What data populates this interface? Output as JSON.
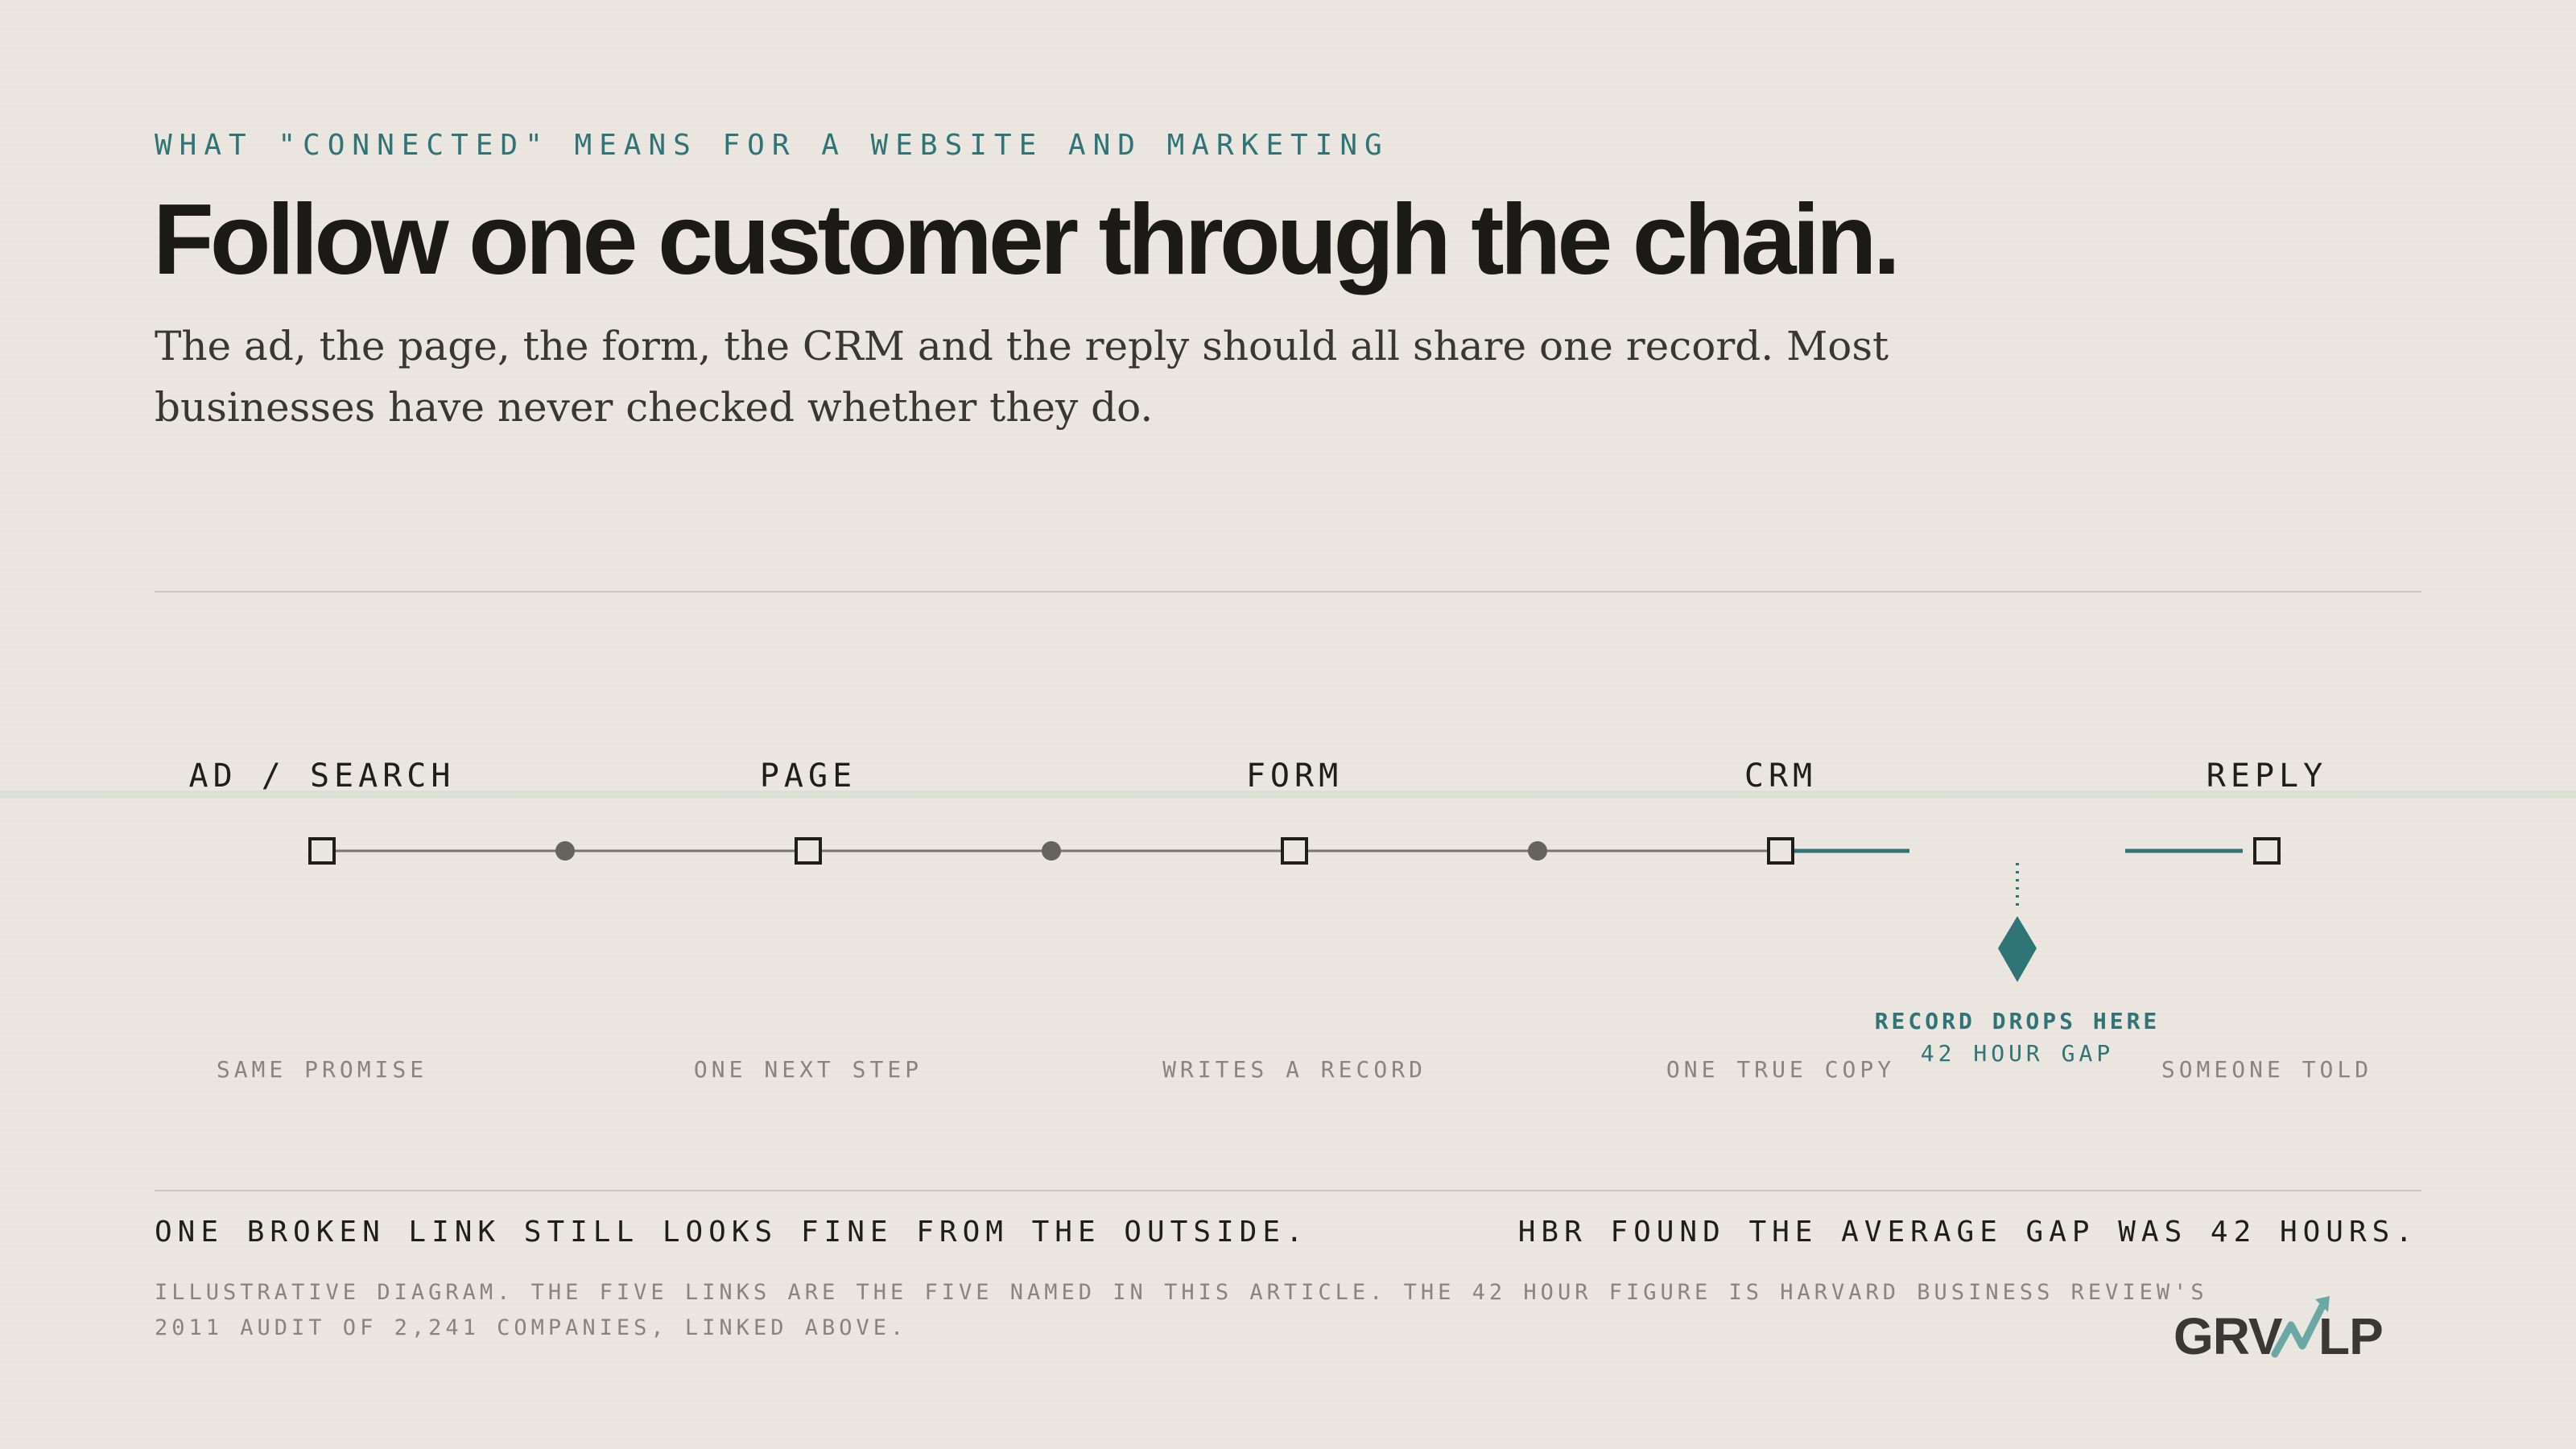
{
  "header": {
    "eyebrow": "WHAT \"CONNECTED\" MEANS FOR A WEBSITE AND MARKETING",
    "title": "Follow one customer through the chain.",
    "intro": "The ad, the page, the form, the CRM and the reply should all share one record. Most businesses have never checked whether they do."
  },
  "colors": {
    "accent": "#2f7476",
    "ink": "#1b1a17",
    "muted": "#8a857c",
    "line": "#7b7770",
    "background": "#ebe7e0"
  },
  "chain": {
    "stages": [
      {
        "name": "AD / SEARCH",
        "caption": "SAME PROMISE"
      },
      {
        "name": "PAGE",
        "caption": "ONE NEXT STEP"
      },
      {
        "name": "FORM",
        "caption": "WRITES A RECORD"
      },
      {
        "name": "CRM",
        "caption": "ONE TRUE COPY"
      },
      {
        "name": "REPLY",
        "caption": "SOMEONE TOLD"
      }
    ],
    "break": {
      "label": "RECORD DROPS HERE",
      "sublabel": "42 HOUR GAP",
      "between": [
        "CRM",
        "REPLY"
      ]
    }
  },
  "footer": {
    "left": "ONE BROKEN LINK STILL LOOKS FINE FROM THE OUTSIDE.",
    "right": "HBR FOUND THE AVERAGE GAP WAS 42 HOURS.",
    "note": "ILLUSTRATIVE DIAGRAM. THE FIVE LINKS ARE THE FIVE NAMED IN THIS ARTICLE. THE 42 HOUR FIGURE IS HARVARD BUSINESS REVIEW'S 2011 AUDIT OF 2,241 COMPANIES, LINKED ABOVE."
  },
  "logo": {
    "text": "GRWLP",
    "icon": "growth-arrow-icon"
  }
}
